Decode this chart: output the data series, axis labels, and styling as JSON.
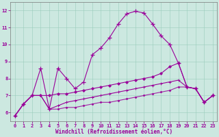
{
  "xlabel": "Windchill (Refroidissement éolien,°C)",
  "background_color": "#cce8e0",
  "line_color": "#990099",
  "x": [
    0,
    1,
    2,
    3,
    4,
    5,
    6,
    7,
    8,
    9,
    10,
    11,
    12,
    13,
    14,
    15,
    16,
    17,
    18,
    19,
    20,
    21,
    22,
    23
  ],
  "line1": [
    5.8,
    6.5,
    7.0,
    8.6,
    6.2,
    8.6,
    8.0,
    7.4,
    7.8,
    9.4,
    9.8,
    10.4,
    11.2,
    11.8,
    11.95,
    11.85,
    11.2,
    10.5,
    10.0,
    8.9,
    7.5,
    7.4,
    6.6,
    7.0
  ],
  "line2": [
    5.8,
    6.5,
    7.0,
    7.0,
    7.0,
    7.1,
    7.1,
    7.2,
    7.3,
    7.4,
    7.5,
    7.6,
    7.7,
    7.8,
    7.9,
    8.0,
    8.1,
    8.3,
    8.7,
    8.9,
    7.5,
    7.4,
    6.6,
    7.0
  ],
  "line3": [
    5.8,
    6.5,
    7.0,
    7.0,
    6.2,
    6.4,
    6.6,
    6.7,
    6.8,
    6.9,
    7.0,
    7.1,
    7.2,
    7.3,
    7.4,
    7.5,
    7.6,
    7.7,
    7.8,
    7.9,
    7.5,
    7.4,
    6.6,
    7.0
  ],
  "line4": [
    5.8,
    6.5,
    7.0,
    7.0,
    6.2,
    6.2,
    6.3,
    6.3,
    6.4,
    6.5,
    6.6,
    6.6,
    6.7,
    6.8,
    6.9,
    7.0,
    7.1,
    7.2,
    7.3,
    7.5,
    7.5,
    7.4,
    6.6,
    7.0
  ],
  "xlim": [
    -0.5,
    23.5
  ],
  "ylim": [
    5.5,
    12.5
  ],
  "yticks": [
    6,
    7,
    8,
    9,
    10,
    11,
    12
  ],
  "xticks": [
    0,
    1,
    2,
    3,
    4,
    5,
    6,
    7,
    8,
    9,
    10,
    11,
    12,
    13,
    14,
    15,
    16,
    17,
    18,
    19,
    20,
    21,
    22,
    23
  ]
}
